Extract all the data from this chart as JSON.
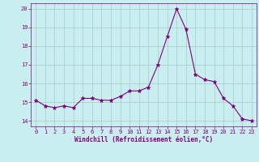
{
  "x": [
    0,
    1,
    2,
    3,
    4,
    5,
    6,
    7,
    8,
    9,
    10,
    11,
    12,
    13,
    14,
    15,
    16,
    17,
    18,
    19,
    20,
    21,
    22,
    23
  ],
  "y": [
    15.1,
    14.8,
    14.7,
    14.8,
    14.7,
    15.2,
    15.2,
    15.1,
    15.1,
    15.3,
    15.6,
    15.6,
    15.8,
    17.0,
    18.5,
    20.0,
    18.9,
    16.5,
    16.2,
    16.1,
    15.2,
    14.8,
    14.1,
    14.0
  ],
  "line_color": "#800080",
  "marker": "*",
  "marker_size": 3.5,
  "bg_color": "#c8eef0",
  "grid_color": "#b0cece",
  "xlabel": "Windchill (Refroidissement éolien,°C)",
  "xlabel_color": "#800080",
  "tick_color": "#800080",
  "xlim": [
    -0.5,
    23.5
  ],
  "ylim": [
    13.7,
    20.3
  ],
  "yticks": [
    14,
    15,
    16,
    17,
    18,
    19,
    20
  ],
  "xticks": [
    0,
    1,
    2,
    3,
    4,
    5,
    6,
    7,
    8,
    9,
    10,
    11,
    12,
    13,
    14,
    15,
    16,
    17,
    18,
    19,
    20,
    21,
    22,
    23
  ],
  "xtick_labels": [
    "0",
    "1",
    "2",
    "3",
    "4",
    "5",
    "6",
    "7",
    "8",
    "9",
    "10",
    "11",
    "12",
    "13",
    "14",
    "15",
    "16",
    "17",
    "18",
    "19",
    "20",
    "21",
    "22",
    "23"
  ]
}
